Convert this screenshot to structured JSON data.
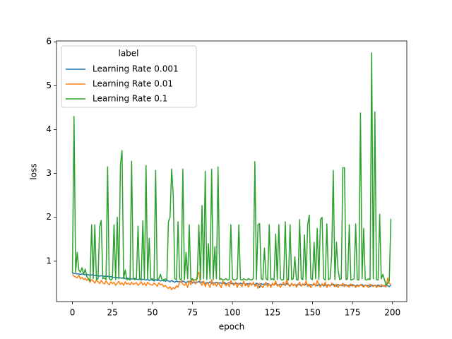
{
  "chart_data": {
    "type": "line",
    "xlabel": "epoch",
    "ylabel": "loss",
    "legend_title": "label",
    "legend_loc": "upper left",
    "xlim": [
      -9.95,
      208.95
    ],
    "ylim": [
      0.08,
      6.02
    ],
    "xticks": [
      0,
      25,
      50,
      75,
      100,
      125,
      150,
      175,
      200
    ],
    "yticks": [
      1,
      2,
      3,
      4,
      5,
      6
    ],
    "x": [
      0,
      1,
      2,
      3,
      4,
      5,
      6,
      7,
      8,
      9,
      10,
      11,
      12,
      13,
      14,
      15,
      16,
      17,
      18,
      19,
      20,
      21,
      22,
      23,
      24,
      25,
      26,
      27,
      28,
      29,
      30,
      31,
      32,
      33,
      34,
      35,
      36,
      37,
      38,
      39,
      40,
      41,
      42,
      43,
      44,
      45,
      46,
      47,
      48,
      49,
      50,
      51,
      52,
      53,
      54,
      55,
      56,
      57,
      58,
      59,
      60,
      61,
      62,
      63,
      64,
      65,
      66,
      67,
      68,
      69,
      70,
      71,
      72,
      73,
      74,
      75,
      76,
      77,
      78,
      79,
      80,
      81,
      82,
      83,
      84,
      85,
      86,
      87,
      88,
      89,
      90,
      91,
      92,
      93,
      94,
      95,
      96,
      97,
      98,
      99,
      100,
      101,
      102,
      103,
      104,
      105,
      106,
      107,
      108,
      109,
      110,
      111,
      112,
      113,
      114,
      115,
      116,
      117,
      118,
      119,
      120,
      121,
      122,
      123,
      124,
      125,
      126,
      127,
      128,
      129,
      130,
      131,
      132,
      133,
      134,
      135,
      136,
      137,
      138,
      139,
      140,
      141,
      142,
      143,
      144,
      145,
      146,
      147,
      148,
      149,
      150,
      151,
      152,
      153,
      154,
      155,
      156,
      157,
      158,
      159,
      160,
      161,
      162,
      163,
      164,
      165,
      166,
      167,
      168,
      169,
      170,
      171,
      172,
      173,
      174,
      175,
      176,
      177,
      178,
      179,
      180,
      181,
      182,
      183,
      184,
      185,
      186,
      187,
      188,
      189,
      190,
      191,
      192,
      193,
      194,
      195,
      196,
      197,
      198,
      199
    ],
    "series": [
      {
        "name": "Learning Rate 0.001",
        "color": "#1f77b4",
        "values": [
          0.73,
          0.72,
          0.72,
          0.71,
          0.71,
          0.7,
          0.71,
          0.7,
          0.69,
          0.7,
          0.69,
          0.68,
          0.69,
          0.68,
          0.67,
          0.68,
          0.67,
          0.66,
          0.67,
          0.66,
          0.66,
          0.65,
          0.66,
          0.64,
          0.65,
          0.64,
          0.63,
          0.64,
          0.62,
          0.63,
          0.62,
          0.61,
          0.63,
          0.6,
          0.62,
          0.6,
          0.61,
          0.59,
          0.6,
          0.61,
          0.59,
          0.58,
          0.6,
          0.57,
          0.59,
          0.58,
          0.57,
          0.59,
          0.56,
          0.58,
          0.57,
          0.55,
          0.58,
          0.56,
          0.57,
          0.55,
          0.56,
          0.58,
          0.54,
          0.56,
          0.55,
          0.53,
          0.56,
          0.54,
          0.52,
          0.55,
          0.53,
          0.54,
          0.52,
          0.55,
          0.53,
          0.51,
          0.54,
          0.52,
          0.55,
          0.5,
          0.53,
          0.51,
          0.52,
          0.54,
          0.5,
          0.53,
          0.51,
          0.49,
          0.52,
          0.5,
          0.53,
          0.49,
          0.51,
          0.5,
          0.52,
          0.48,
          0.51,
          0.5,
          0.49,
          0.52,
          0.48,
          0.5,
          0.51,
          0.49,
          0.5,
          0.48,
          0.51,
          0.49,
          0.47,
          0.5,
          0.48,
          0.51,
          0.47,
          0.49,
          0.48,
          0.5,
          0.47,
          0.49,
          0.46,
          0.5,
          0.48,
          0.4,
          0.49,
          0.47,
          0.48,
          0.46,
          0.49,
          0.47,
          0.45,
          0.48,
          0.46,
          0.49,
          0.47,
          0.45,
          0.48,
          0.46,
          0.47,
          0.45,
          0.49,
          0.46,
          0.44,
          0.48,
          0.46,
          0.47,
          0.45,
          0.48,
          0.46,
          0.44,
          0.47,
          0.45,
          0.48,
          0.46,
          0.44,
          0.47,
          0.45,
          0.47,
          0.46,
          0.44,
          0.48,
          0.45,
          0.47,
          0.43,
          0.46,
          0.45,
          0.47,
          0.44,
          0.46,
          0.48,
          0.45,
          0.43,
          0.47,
          0.45,
          0.46,
          0.44,
          0.47,
          0.45,
          0.43,
          0.46,
          0.44,
          0.47,
          0.45,
          0.43,
          0.46,
          0.44,
          0.45,
          0.47,
          0.43,
          0.46,
          0.44,
          0.45,
          0.42,
          0.46,
          0.44,
          0.45,
          0.43,
          0.46,
          0.44,
          0.42,
          0.45,
          0.43,
          0.46,
          0.44,
          0.42,
          0.46
        ]
      },
      {
        "name": "Learning Rate 0.01",
        "color": "#ff7f0e",
        "values": [
          0.7,
          0.66,
          0.64,
          0.62,
          0.68,
          0.6,
          0.63,
          0.58,
          0.61,
          0.56,
          0.6,
          0.52,
          0.58,
          0.55,
          0.5,
          0.57,
          0.53,
          0.49,
          0.56,
          0.51,
          0.48,
          0.55,
          0.5,
          0.46,
          0.53,
          0.49,
          0.52,
          0.45,
          0.5,
          0.54,
          0.47,
          0.51,
          0.45,
          0.53,
          0.48,
          0.5,
          0.46,
          0.52,
          0.47,
          0.49,
          0.51,
          0.45,
          0.48,
          0.53,
          0.46,
          0.5,
          0.44,
          0.52,
          0.48,
          0.47,
          0.45,
          0.5,
          0.47,
          0.43,
          0.51,
          0.46,
          0.48,
          0.42,
          0.45,
          0.4,
          0.38,
          0.42,
          0.35,
          0.4,
          0.37,
          0.44,
          0.41,
          0.52,
          0.55,
          0.48,
          0.45,
          0.5,
          0.4,
          0.55,
          0.46,
          0.6,
          0.52,
          0.48,
          0.68,
          0.75,
          0.5,
          0.45,
          0.55,
          0.42,
          0.52,
          0.47,
          0.4,
          0.58,
          0.45,
          0.5,
          0.43,
          0.52,
          0.46,
          0.4,
          0.55,
          0.48,
          0.44,
          0.5,
          0.42,
          0.56,
          0.48,
          0.45,
          0.52,
          0.4,
          0.5,
          0.46,
          0.42,
          0.55,
          0.44,
          0.48,
          0.41,
          0.5,
          0.45,
          0.52,
          0.43,
          0.47,
          0.38,
          0.5,
          0.44,
          0.4,
          0.46,
          0.52,
          0.42,
          0.48,
          0.4,
          0.5,
          0.45,
          0.55,
          0.43,
          0.47,
          0.4,
          0.48,
          0.52,
          0.44,
          0.58,
          0.46,
          0.42,
          0.5,
          0.44,
          0.48,
          0.41,
          0.47,
          0.52,
          0.43,
          0.49,
          0.45,
          0.55,
          0.42,
          0.48,
          0.4,
          0.46,
          0.5,
          0.43,
          0.56,
          0.45,
          0.41,
          0.49,
          0.44,
          0.52,
          0.4,
          0.47,
          0.43,
          0.5,
          0.45,
          0.42,
          0.48,
          0.4,
          0.46,
          0.44,
          0.5,
          0.42,
          0.47,
          0.44,
          0.41,
          0.48,
          0.43,
          0.46,
          0.4,
          0.45,
          0.42,
          0.47,
          0.44,
          0.41,
          0.46,
          0.43,
          0.4,
          0.48,
          0.44,
          0.42,
          0.46,
          0.4,
          0.44,
          0.42,
          0.47,
          0.43,
          0.45,
          0.41,
          0.62,
          0.5,
          0.46
        ]
      },
      {
        "name": "Learning Rate 0.1",
        "color": "#2ca02c",
        "values": [
          0.73,
          4.3,
          0.75,
          1.2,
          0.8,
          0.75,
          0.85,
          0.7,
          0.82,
          0.65,
          0.6,
          0.55,
          1.83,
          0.6,
          1.83,
          0.58,
          0.6,
          1.78,
          1.93,
          0.6,
          0.62,
          0.58,
          3.15,
          0.6,
          0.57,
          0.6,
          1.83,
          0.58,
          2.0,
          0.6,
          3.2,
          3.52,
          0.6,
          0.8,
          0.58,
          0.6,
          0.57,
          3.28,
          0.6,
          0.58,
          0.6,
          1.8,
          0.58,
          0.6,
          1.92,
          0.58,
          3.18,
          0.6,
          1.52,
          0.58,
          0.6,
          0.57,
          3.07,
          0.58,
          0.6,
          0.7,
          0.58,
          0.55,
          0.6,
          0.57,
          1.9,
          2.0,
          3.1,
          2.5,
          0.6,
          0.58,
          1.9,
          0.6,
          0.57,
          3.1,
          0.58,
          1.2,
          0.6,
          1.83,
          0.58,
          0.6,
          0.57,
          0.58,
          0.6,
          1.83,
          0.58,
          2.27,
          0.6,
          3.05,
          0.58,
          1.4,
          0.6,
          3.1,
          0.58,
          1.33,
          0.6,
          3.15,
          0.58,
          0.6,
          0.57,
          0.58,
          0.6,
          0.57,
          0.58,
          1.83,
          0.6,
          0.57,
          0.58,
          0.6,
          1.83,
          0.58,
          0.57,
          0.6,
          0.58,
          0.57,
          0.6,
          0.58,
          0.57,
          0.6,
          3.27,
          0.58,
          1.83,
          1.86,
          0.6,
          0.58,
          1.3,
          0.6,
          0.57,
          1.83,
          0.58,
          0.6,
          0.57,
          1.62,
          0.58,
          1.83,
          0.6,
          0.57,
          0.58,
          1.9,
          0.6,
          0.57,
          1.83,
          0.58,
          0.6,
          1.1,
          0.58,
          0.57,
          1.95,
          0.6,
          0.58,
          1.6,
          0.57,
          1.83,
          2.05,
          0.6,
          0.58,
          1.43,
          0.6,
          1.75,
          0.58,
          1.95,
          2.0,
          0.6,
          0.57,
          1.85,
          0.58,
          0.6,
          1.13,
          3.07,
          0.58,
          1.43,
          0.8,
          0.58,
          0.6,
          3.13,
          3.13,
          0.58,
          0.6,
          1.83,
          0.57,
          0.58,
          0.6,
          1.85,
          0.58,
          0.57,
          4.38,
          0.6,
          1.75,
          0.58,
          0.57,
          0.6,
          0.58,
          5.75,
          0.6,
          4.4,
          0.58,
          0.57,
          2.07,
          0.6,
          0.7,
          0.58,
          0.45,
          0.5,
          0.55,
          1.97
        ]
      }
    ]
  }
}
